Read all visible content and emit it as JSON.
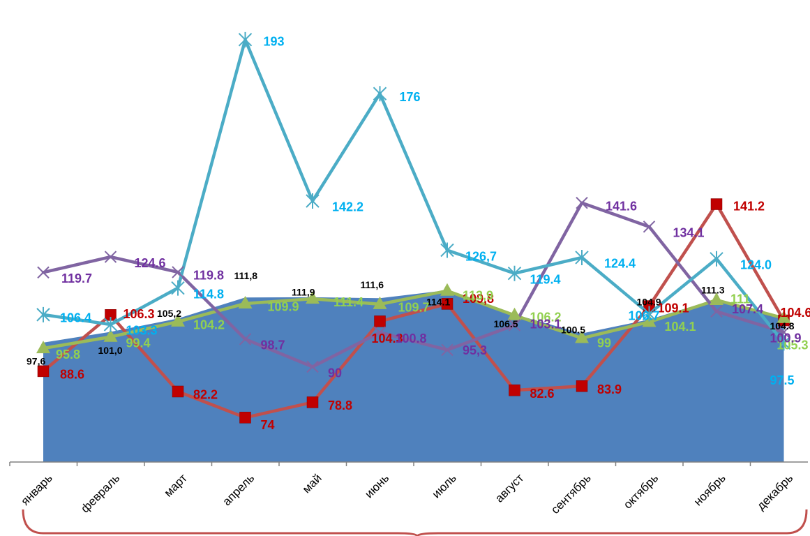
{
  "chart_data": {
    "type": "line",
    "categories": [
      "январь",
      "февраль",
      "март",
      "апрель",
      "май",
      "июнь",
      "июль",
      "август",
      "сентябрь",
      "октябрь",
      "ноябрь",
      "декабрь"
    ],
    "ylim": [
      60,
      200
    ],
    "grid": false,
    "legend": "none",
    "series": [
      {
        "kind": "area",
        "color": "#4f81bd",
        "label_color": "#000000",
        "values": [
          97.6,
          101.0,
          105.2,
          111.8,
          111.9,
          111.6,
          114.1,
          106.5,
          100.5,
          104.9,
          111.3,
          104.8
        ],
        "labels": [
          "97,6",
          "101,0",
          "105,2",
          "111,8",
          "111,9",
          "111,6",
          "114.1",
          "106.5",
          "100.5",
          "104.9",
          "111.3",
          "104.8"
        ]
      },
      {
        "kind": "line",
        "marker": "square",
        "color": "#c0504d",
        "marker_color": "#c00000",
        "label_color": "#c00000",
        "values": [
          88.6,
          106.3,
          82.2,
          74,
          78.8,
          104.3,
          109.8,
          82.6,
          83.9,
          109.1,
          141.2,
          104.6
        ],
        "labels": [
          "88.6",
          "106.3",
          "82.2",
          "74",
          "78.8",
          "104.3",
          "109,8",
          "82.6",
          "83.9",
          "109.1",
          "141.2",
          "104.6"
        ]
      },
      {
        "kind": "line",
        "marker": "triangle",
        "color": "#9bbb59",
        "label_color": "#92d050",
        "values": [
          95.8,
          99.4,
          104.2,
          109.9,
          111.4,
          109.7,
          113.9,
          106.2,
          99,
          104.1,
          111,
          105.3
        ],
        "labels": [
          "95.8",
          "99.4",
          "104.2",
          "109.9",
          "111.4",
          "109.7",
          "113,9",
          "106.2",
          "99",
          "104.1",
          "111",
          "105.3"
        ]
      },
      {
        "kind": "line",
        "marker": "x",
        "color": "#8064a2",
        "label_color": "#7030a0",
        "values": [
          119.7,
          124.6,
          119.8,
          98.7,
          90,
          100.8,
          95.3,
          103.1,
          141.6,
          134.1,
          107.4,
          100.9
        ],
        "labels": [
          "119.7",
          "124.6",
          "119.8",
          "98.7",
          "90",
          "100.8",
          "95,3",
          "103.1",
          "141.6",
          "134.1",
          "107.4",
          "100.9"
        ]
      },
      {
        "kind": "line",
        "marker": "star",
        "color": "#4bacc6",
        "label_color": "#00b0f0",
        "values": [
          106.4,
          103.3,
          114.8,
          193,
          142.2,
          176,
          126.7,
          119.4,
          124.4,
          106.7,
          124.0,
          97.5
        ],
        "labels": [
          "106.4",
          "103.3",
          "114.8",
          "193",
          "142.2",
          "176",
          "126,7",
          "119.4",
          "124.4",
          "106.7",
          "124.0",
          "97.5"
        ]
      }
    ]
  }
}
